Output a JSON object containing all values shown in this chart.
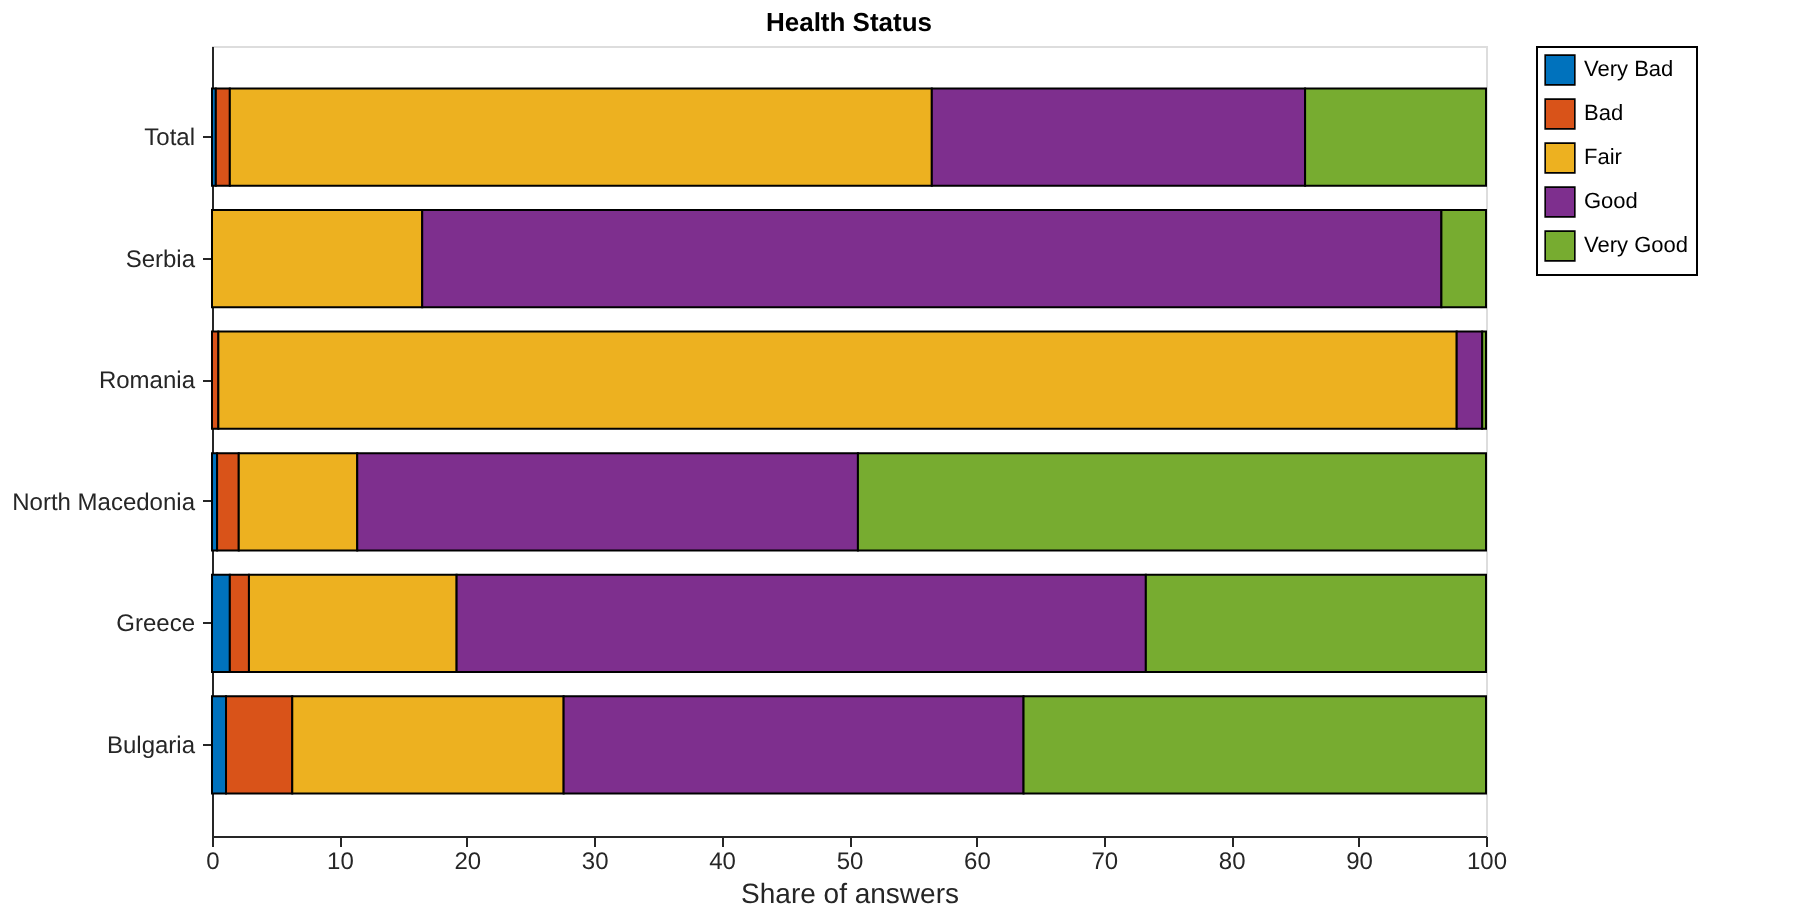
{
  "chart_data": {
    "type": "bar",
    "title": "Health Status",
    "xlabel": "Share of answers",
    "orientation": "horizontal",
    "stacked": true,
    "categories": [
      "Total",
      "Serbia",
      "Romania",
      "North Macedonia",
      "Greece",
      "Bulgaria"
    ],
    "series": [
      {
        "name": "Very Bad",
        "color": "#0072bd",
        "values": [
          0.3,
          0,
          0,
          0.4,
          1.4,
          1.1
        ]
      },
      {
        "name": "Bad",
        "color": "#d95319",
        "values": [
          1.1,
          0,
          0.5,
          1.7,
          1.5,
          5.2
        ]
      },
      {
        "name": "Fair",
        "color": "#edb120",
        "values": [
          55.1,
          16.5,
          97.2,
          9.3,
          16.3,
          21.3
        ]
      },
      {
        "name": "Good",
        "color": "#7e2f8e",
        "values": [
          29.3,
          80.0,
          2.0,
          39.3,
          54.1,
          36.1
        ]
      },
      {
        "name": "Very Good",
        "color": "#77ac30",
        "values": [
          14.2,
          3.5,
          0.3,
          49.3,
          26.7,
          36.3
        ]
      }
    ],
    "xlim": [
      0,
      100
    ],
    "xticks": [
      0,
      10,
      20,
      30,
      40,
      50,
      60,
      70,
      80,
      90,
      100
    ],
    "grid": false,
    "legend": "right"
  }
}
